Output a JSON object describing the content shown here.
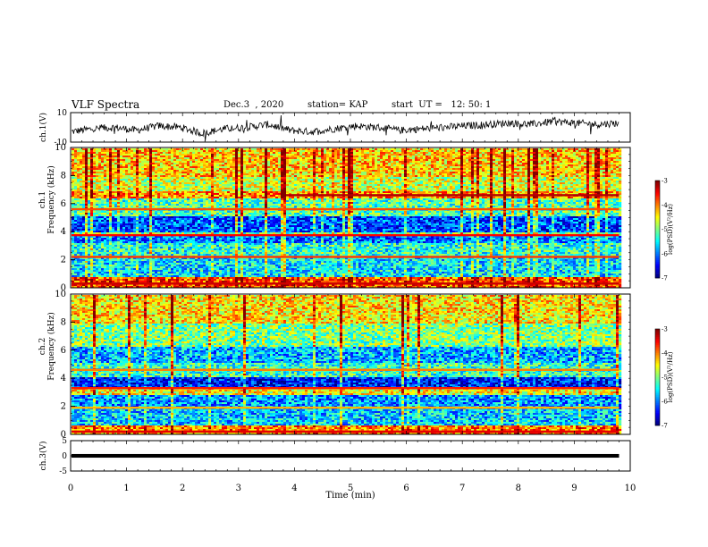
{
  "header": {
    "title": "VLF Spectra",
    "date": "Dec.3  , 2020",
    "station": "station= KAP",
    "start": "start  UT =   12: 50: 1"
  },
  "chart_data": [
    {
      "type": "line",
      "name": "ch1-waveform",
      "ylabel": "ch.1(V)",
      "ylim": [
        -10,
        10
      ],
      "yticks": [
        "10",
        "-10"
      ],
      "xlim": [
        0,
        10
      ],
      "x_end_min": 9.8,
      "baseline_v": [
        -3,
        -1,
        0,
        -2,
        1,
        0,
        -4,
        -1,
        0,
        2,
        -2,
        -3,
        -1,
        1,
        0,
        -2,
        -1,
        0,
        1,
        2,
        3,
        2,
        4,
        3,
        2,
        3
      ]
    },
    {
      "type": "heatmap",
      "name": "ch1-spectrogram",
      "ylabel": [
        "ch.1",
        "Frequency (kHz)"
      ],
      "ylim": [
        0,
        10
      ],
      "yticks": [
        "0",
        "2",
        "4",
        "6",
        "8",
        "10"
      ],
      "xlim": [
        0,
        10
      ],
      "x_end_min": 9.8,
      "colorbar": {
        "label": "log(PSD)(V²/Hz)",
        "ticks": [
          "-3",
          "-4",
          "-5",
          "-6",
          "-7"
        ],
        "range": [
          -7,
          -3
        ]
      },
      "bands_khz": [
        {
          "f0": 0.0,
          "f1": 0.8,
          "level": -3.8
        },
        {
          "f0": 0.8,
          "f1": 2.2,
          "level": -5.6
        },
        {
          "f0": 2.2,
          "f1": 3.3,
          "level": -5.4
        },
        {
          "f0": 3.3,
          "f1": 3.7,
          "level": -6.0
        },
        {
          "f0": 3.7,
          "f1": 4.0,
          "level": -5.0
        },
        {
          "f0": 4.0,
          "f1": 5.1,
          "level": -6.2
        },
        {
          "f0": 5.1,
          "f1": 6.4,
          "level": -5.2
        },
        {
          "f0": 6.4,
          "f1": 6.9,
          "level": -4.1
        },
        {
          "f0": 6.9,
          "f1": 8.0,
          "level": -4.7
        },
        {
          "f0": 8.0,
          "f1": 10.0,
          "level": -4.3
        }
      ],
      "lines_khz": [
        {
          "f": 0.3,
          "level": -3.3
        },
        {
          "f": 2.2,
          "level": -3.7
        },
        {
          "f": 3.75,
          "level": -3.5
        },
        {
          "f": 6.6,
          "level": -3.2,
          "t_start_min": 3.85
        },
        {
          "f": 5.6,
          "level": -3.8
        }
      ]
    },
    {
      "type": "heatmap",
      "name": "ch2-spectrogram",
      "ylabel": [
        "ch.2",
        "Frequency (kHz)"
      ],
      "ylim": [
        0,
        10
      ],
      "yticks": [
        "0",
        "2",
        "4",
        "6",
        "8",
        "10"
      ],
      "xlim": [
        0,
        10
      ],
      "x_end_min": 9.8,
      "colorbar": {
        "label": "log(PSD)(V²/Hz)",
        "ticks": [
          "-3",
          "-4",
          "-5",
          "-6",
          "-7"
        ],
        "range": [
          -7,
          -3
        ]
      },
      "bands_khz": [
        {
          "f0": 0.0,
          "f1": 0.7,
          "level": -4.0
        },
        {
          "f0": 0.7,
          "f1": 1.8,
          "level": -5.7
        },
        {
          "f0": 1.8,
          "f1": 2.9,
          "level": -5.9
        },
        {
          "f0": 2.9,
          "f1": 3.4,
          "level": -4.5
        },
        {
          "f0": 3.4,
          "f1": 4.2,
          "level": -6.4
        },
        {
          "f0": 4.2,
          "f1": 5.2,
          "level": -5.3
        },
        {
          "f0": 5.2,
          "f1": 6.3,
          "level": -5.8
        },
        {
          "f0": 6.3,
          "f1": 8.0,
          "level": -5.0
        },
        {
          "f0": 8.0,
          "f1": 10.0,
          "level": -4.4
        }
      ],
      "lines_khz": [
        {
          "f": 0.2,
          "level": -3.4
        },
        {
          "f": 3.3,
          "level": -3.6
        },
        {
          "f": 4.6,
          "level": -4.0
        },
        {
          "f": 1.9,
          "level": -4.2
        }
      ]
    },
    {
      "type": "line",
      "name": "ch3-waveform",
      "ylabel": "ch.3(V)",
      "ylim": [
        -5,
        5
      ],
      "yticks": [
        "5",
        "0",
        "-5"
      ],
      "xlim": [
        0,
        10
      ],
      "x_end_min": 9.8,
      "value_v": 0,
      "amplitude_v": 0.6
    }
  ],
  "xaxis": {
    "label": "Time  (min)",
    "ticks": [
      "0",
      "1",
      "2",
      "3",
      "4",
      "5",
      "6",
      "7",
      "8",
      "9",
      "10"
    ]
  },
  "colors": {
    "trace": "#000000",
    "frame": "#000000"
  }
}
